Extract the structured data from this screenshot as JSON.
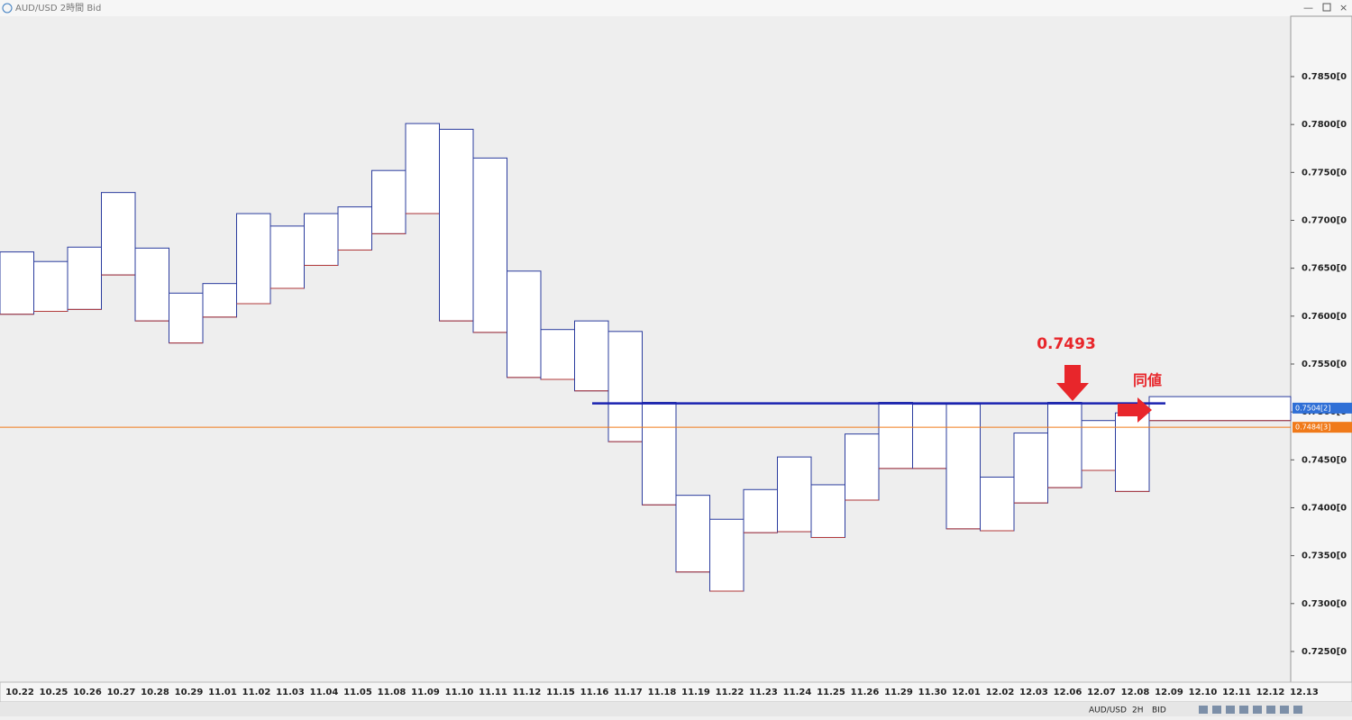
{
  "window": {
    "title": "AUD/USD 2時間 Bid"
  },
  "toolbar": [
    "AUD/USD",
    "2H",
    "BID"
  ],
  "chart_data": {
    "type": "range_box",
    "categories": [
      "10.22",
      "10.25",
      "10.26",
      "10.27",
      "10.28",
      "10.29",
      "11.01",
      "11.02",
      "11.03",
      "11.04",
      "11.05",
      "11.08",
      "11.09",
      "11.10",
      "11.11",
      "11.12",
      "11.15",
      "11.16",
      "11.17",
      "11.18",
      "11.19",
      "11.22",
      "11.23",
      "11.24",
      "11.25",
      "11.26",
      "11.29",
      "11.30",
      "12.01",
      "12.02",
      "12.03",
      "12.06",
      "12.07",
      "12.08",
      "12.09",
      "12.10",
      "12.11",
      "12.12",
      "12.13"
    ],
    "series": [
      {
        "name": "high",
        "color": "#2b3c9e",
        "values": [
          0.7667,
          0.7657,
          0.7672,
          0.7729,
          0.7671,
          0.7624,
          0.7634,
          0.7707,
          0.7694,
          0.7707,
          0.7714,
          0.7752,
          0.7801,
          0.7795,
          0.7765,
          0.7647,
          0.7586,
          0.7595,
          0.7584,
          0.751,
          0.7413,
          0.7388,
          0.7419,
          0.7453,
          0.7424,
          0.7477,
          0.751,
          0.7508,
          0.7508,
          0.7432,
          0.7478,
          0.751,
          0.7491,
          0.7499,
          0.7516,
          null,
          null,
          null,
          null
        ]
      },
      {
        "name": "low",
        "color": "#b23a3a",
        "values": [
          0.7602,
          0.7605,
          0.7607,
          0.7643,
          0.7595,
          0.7572,
          0.7599,
          0.7613,
          0.7629,
          0.7653,
          0.7669,
          0.7686,
          0.7707,
          0.7595,
          0.7583,
          0.7536,
          0.7534,
          0.7522,
          0.7469,
          0.7403,
          0.7333,
          0.7313,
          0.7374,
          0.7375,
          0.7369,
          0.7408,
          0.7441,
          0.7441,
          0.7378,
          0.7376,
          0.7405,
          0.7421,
          0.7439,
          0.7417,
          0.7491,
          null,
          null,
          null,
          null
        ]
      }
    ],
    "ylim": [
      0.7218,
      0.7913
    ],
    "yticks": [
      {
        "value": 0.785,
        "label": "0.7850[0"
      },
      {
        "value": 0.78,
        "label": "0.7800[0"
      },
      {
        "value": 0.775,
        "label": "0.7750[0"
      },
      {
        "value": 0.77,
        "label": "0.7700[0"
      },
      {
        "value": 0.765,
        "label": "0.7650[0"
      },
      {
        "value": 0.76,
        "label": "0.7600[0"
      },
      {
        "value": 0.755,
        "label": "0.7550[0"
      },
      {
        "value": 0.75,
        "label": "0.7500[0"
      },
      {
        "value": 0.745,
        "label": "0.7450[0"
      },
      {
        "value": 0.74,
        "label": "0.7400[0"
      },
      {
        "value": 0.735,
        "label": "0.7350[0"
      },
      {
        "value": 0.73,
        "label": "0.7300[0"
      },
      {
        "value": 0.725,
        "label": "0.7250[0"
      }
    ],
    "ask": {
      "value": 0.7504,
      "label": "0.7504[2]",
      "color": "#2f6fd6"
    },
    "bid": {
      "value": 0.7484,
      "label": "0.7484[3]",
      "color": "#f07a1a"
    },
    "level_line": {
      "value": 0.7509,
      "color": "#1a22b0"
    },
    "annotations": [
      "0.7493",
      "同値"
    ]
  }
}
